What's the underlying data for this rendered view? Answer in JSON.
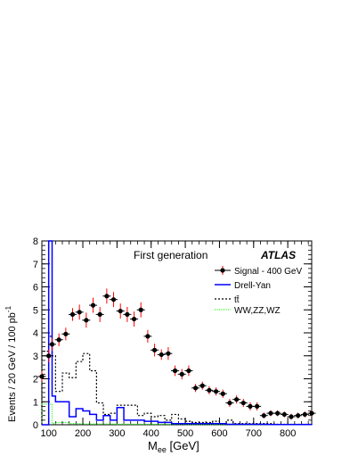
{
  "chart_data": {
    "type": "histogram",
    "annotation": "First generation",
    "experiment_label": "ATLAS",
    "xlabel_main": "M",
    "xlabel_sub": "ee",
    "xlabel_unit": "[GeV]",
    "ylabel_main": "Events / 20 GeV / 100 pb",
    "ylabel_sup": "-1",
    "xlim": [
      80,
      870
    ],
    "ylim": [
      0,
      8
    ],
    "x_ticks": [
      100,
      200,
      300,
      400,
      500,
      600,
      700,
      800
    ],
    "y_ticks": [
      0,
      1,
      2,
      3,
      4,
      5,
      6,
      7,
      8
    ],
    "legend_position": "top-right",
    "series": [
      {
        "name": "Signal - 400 GeV",
        "style": "points-with-errors",
        "color": "#000000",
        "error_color": "#ff0000",
        "x": [
          80,
          100,
          110,
          130,
          150,
          170,
          190,
          210,
          230,
          250,
          270,
          290,
          310,
          330,
          350,
          370,
          390,
          410,
          430,
          450,
          470,
          490,
          510,
          530,
          550,
          570,
          590,
          610,
          630,
          650,
          670,
          690,
          710,
          730,
          750,
          770,
          790,
          810,
          830,
          850,
          870
        ],
        "y": [
          2.1,
          3.0,
          3.5,
          3.7,
          3.95,
          4.8,
          4.9,
          4.55,
          5.2,
          4.8,
          5.6,
          5.45,
          4.95,
          4.8,
          4.6,
          5.0,
          3.85,
          3.25,
          3.05,
          3.1,
          2.35,
          2.2,
          2.35,
          1.6,
          1.7,
          1.5,
          1.45,
          1.35,
          0.95,
          1.1,
          0.95,
          0.8,
          0.8,
          0.4,
          0.5,
          0.5,
          0.45,
          0.35,
          0.4,
          0.45,
          0.5
        ],
        "yerr": [
          0.15,
          0.2,
          0.2,
          0.2,
          0.2,
          0.2,
          0.25,
          0.25,
          0.25,
          0.25,
          0.25,
          0.25,
          0.25,
          0.25,
          0.25,
          0.25,
          0.2,
          0.2,
          0.15,
          0.2,
          0.15,
          0.15,
          0.15,
          0.1,
          0.1,
          0.1,
          0.1,
          0.1,
          0.1,
          0.1,
          0.1,
          0.1,
          0.1,
          0.05,
          0.05,
          0.05,
          0.05,
          0.05,
          0.05,
          0.05,
          0.05
        ]
      },
      {
        "name": "Drell-Yan",
        "style": "step-solid",
        "color": "#0000ff",
        "edges": [
          80,
          100,
          110,
          120,
          140,
          160,
          180,
          200,
          220,
          240,
          260,
          280,
          300,
          320,
          340,
          360,
          380,
          400,
          420,
          440,
          460,
          480,
          500,
          520,
          540,
          560,
          580,
          600,
          620,
          640,
          660,
          680,
          700,
          720,
          740,
          760,
          780,
          800,
          820,
          840,
          860,
          870
        ],
        "values": [
          0,
          8.0,
          1.25,
          1.0,
          1.0,
          0.35,
          0.7,
          0.6,
          0.45,
          0.2,
          0.4,
          0.2,
          0.75,
          0.2,
          0.2,
          0.2,
          0.15,
          0.15,
          0.1,
          0.1,
          0.05,
          0.05,
          0.05,
          0.05,
          0.05,
          0.05,
          0.05,
          0.05,
          0.02,
          0.02,
          0.02,
          0.02,
          0.02,
          0.02,
          0.01,
          0.01,
          0.01,
          0.01,
          0.01,
          0.01,
          0.01
        ]
      },
      {
        "name": "tt̄",
        "style": "step-dashed",
        "color": "#000000",
        "edges": [
          80,
          100,
          110,
          120,
          140,
          160,
          180,
          200,
          220,
          240,
          260,
          280,
          300,
          320,
          340,
          360,
          380,
          400,
          420,
          440,
          460,
          480,
          500,
          520,
          540,
          560,
          580,
          600,
          620,
          640,
          660,
          680,
          700,
          720,
          740,
          760,
          780,
          800,
          820,
          840,
          860,
          870
        ],
        "values": [
          3.2,
          3.85,
          3.0,
          1.45,
          2.25,
          2.05,
          2.75,
          3.1,
          2.35,
          0.95,
          0.45,
          0.5,
          0.85,
          0.85,
          0.85,
          0.4,
          0.5,
          0.35,
          0.4,
          0.2,
          0.45,
          0.25,
          0.15,
          0.1,
          0.1,
          0.1,
          0.15,
          0.05,
          0.2,
          0.05,
          0.05,
          0.05,
          0.05,
          0.05,
          0.05,
          0.02,
          0.02,
          0.02,
          0.02,
          0.02,
          0.02
        ]
      },
      {
        "name": "WW,ZZ,WZ",
        "style": "step-dotted",
        "color": "#00ff00",
        "edges": [
          80,
          90,
          100,
          110,
          120,
          160,
          200,
          300,
          400,
          500,
          600,
          700,
          800,
          870
        ],
        "values": [
          0.9,
          0.9,
          0.9,
          0.05,
          0.1,
          0.05,
          0.03,
          0.02,
          0.02,
          0.01,
          0.01,
          0.01,
          0.01
        ]
      }
    ]
  }
}
